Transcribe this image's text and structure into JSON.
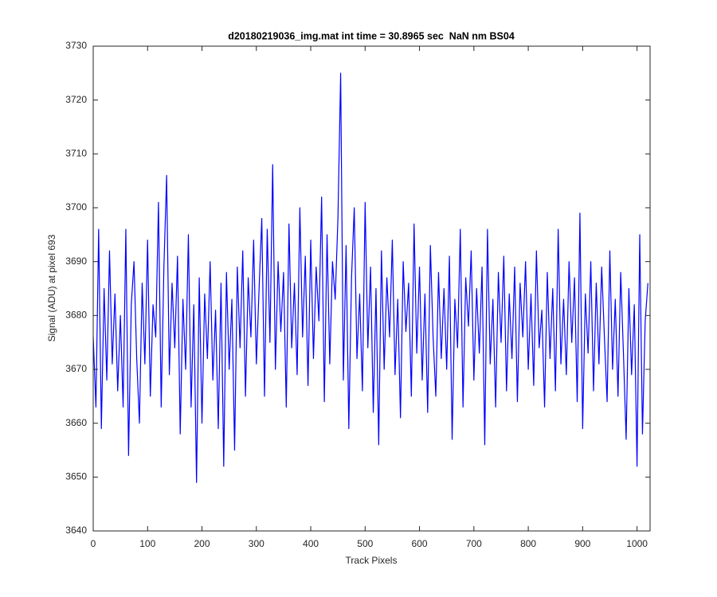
{
  "chart_data": {
    "type": "line",
    "title": "d20180219036_img.mat int time = 30.8965 sec  NaN nm BS04",
    "x_label": "Track Pixels",
    "y_label": "Signal (ADU) at pixel 693",
    "xlim": [
      0,
      1024
    ],
    "xticks": [
      0,
      100,
      200,
      300,
      400,
      500,
      600,
      700,
      800,
      900,
      1000
    ],
    "ylim": [
      3640,
      3730
    ],
    "yticks": [
      3640,
      3650,
      3660,
      3670,
      3680,
      3690,
      3700,
      3710,
      3720,
      3730
    ],
    "grid": false,
    "x": [
      0,
      5,
      10,
      15,
      20,
      25,
      30,
      35,
      40,
      45,
      50,
      55,
      60,
      65,
      70,
      75,
      80,
      85,
      90,
      95,
      100,
      105,
      110,
      115,
      120,
      125,
      130,
      135,
      140,
      145,
      150,
      155,
      160,
      165,
      170,
      175,
      180,
      185,
      190,
      195,
      200,
      205,
      210,
      215,
      220,
      225,
      230,
      235,
      240,
      245,
      250,
      255,
      260,
      265,
      270,
      275,
      280,
      285,
      290,
      295,
      300,
      305,
      310,
      315,
      320,
      325,
      330,
      335,
      340,
      345,
      350,
      355,
      360,
      365,
      370,
      375,
      380,
      385,
      390,
      395,
      400,
      405,
      410,
      415,
      420,
      425,
      430,
      435,
      440,
      445,
      450,
      455,
      460,
      465,
      470,
      475,
      480,
      485,
      490,
      495,
      500,
      505,
      510,
      515,
      520,
      525,
      530,
      535,
      540,
      545,
      550,
      555,
      560,
      565,
      570,
      575,
      580,
      585,
      590,
      595,
      600,
      605,
      610,
      615,
      620,
      625,
      630,
      635,
      640,
      645,
      650,
      655,
      660,
      665,
      670,
      675,
      680,
      685,
      690,
      695,
      700,
      705,
      710,
      715,
      720,
      725,
      730,
      735,
      740,
      745,
      750,
      755,
      760,
      765,
      770,
      775,
      780,
      785,
      790,
      795,
      800,
      805,
      810,
      815,
      820,
      825,
      830,
      835,
      840,
      845,
      850,
      855,
      860,
      865,
      870,
      875,
      880,
      885,
      890,
      895,
      900,
      905,
      910,
      915,
      920,
      925,
      930,
      935,
      940,
      945,
      950,
      955,
      960,
      965,
      970,
      975,
      980,
      985,
      990,
      995,
      1000,
      1005,
      1010,
      1015,
      1020
    ],
    "series": [
      {
        "color": "#0000ff",
        "values": [
          3676,
          3663,
          3696,
          3659,
          3685,
          3668,
          3692,
          3671,
          3684,
          3666,
          3680,
          3663,
          3696,
          3654,
          3682,
          3690,
          3672,
          3660,
          3686,
          3671,
          3694,
          3665,
          3682,
          3676,
          3701,
          3663,
          3689,
          3706,
          3669,
          3686,
          3674,
          3691,
          3658,
          3683,
          3670,
          3695,
          3663,
          3682,
          3649,
          3687,
          3660,
          3684,
          3672,
          3690,
          3668,
          3681,
          3659,
          3686,
          3652,
          3688,
          3670,
          3683,
          3655,
          3689,
          3674,
          3692,
          3665,
          3687,
          3676,
          3694,
          3671,
          3685,
          3698,
          3665,
          3696,
          3675,
          3708,
          3670,
          3690,
          3677,
          3688,
          3663,
          3697,
          3674,
          3686,
          3669,
          3700,
          3676,
          3691,
          3667,
          3694,
          3672,
          3689,
          3679,
          3702,
          3664,
          3695,
          3671,
          3690,
          3683,
          3698,
          3725,
          3668,
          3693,
          3659,
          3687,
          3700,
          3672,
          3684,
          3666,
          3701,
          3674,
          3689,
          3662,
          3685,
          3656,
          3692,
          3670,
          3687,
          3676,
          3694,
          3669,
          3683,
          3661,
          3690,
          3677,
          3686,
          3665,
          3697,
          3673,
          3689,
          3668,
          3684,
          3662,
          3693,
          3676,
          3665,
          3688,
          3672,
          3685,
          3670,
          3691,
          3657,
          3683,
          3674,
          3696,
          3663,
          3687,
          3678,
          3692,
          3668,
          3685,
          3673,
          3689,
          3656,
          3696,
          3671,
          3683,
          3663,
          3688,
          3675,
          3691,
          3666,
          3684,
          3672,
          3689,
          3664,
          3686,
          3676,
          3690,
          3670,
          3684,
          3667,
          3692,
          3674,
          3681,
          3663,
          3688,
          3672,
          3685,
          3666,
          3696,
          3671,
          3683,
          3669,
          3690,
          3675,
          3687,
          3664,
          3699,
          3659,
          3684,
          3673,
          3690,
          3666,
          3686,
          3671,
          3689,
          3676,
          3664,
          3692,
          3670,
          3683,
          3665,
          3688,
          3673,
          3657,
          3685,
          3669,
          3682,
          3652,
          3695,
          3658,
          3679,
          3686
        ]
      }
    ]
  }
}
